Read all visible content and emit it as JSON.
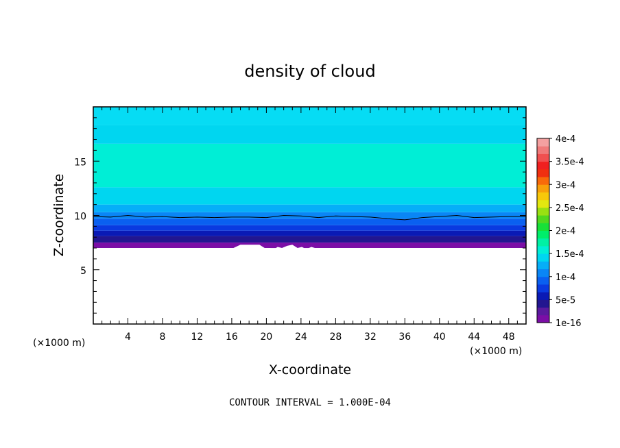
{
  "chart_data": {
    "type": "heatmap",
    "title": "density of cloud",
    "xlabel": "X-coordinate",
    "ylabel": "Z-coordinate",
    "x_unit": "(×1000 m)",
    "z_unit": "(×1000 m)",
    "xlim": [
      0,
      50
    ],
    "ylim": [
      0,
      20
    ],
    "x_ticks": [
      "4",
      "8",
      "12",
      "16",
      "20",
      "24",
      "28",
      "32",
      "36",
      "40",
      "44",
      "48"
    ],
    "y_ticks": [
      "5",
      "10",
      "15"
    ],
    "x_tick_values": [
      4,
      8,
      12,
      16,
      20,
      24,
      28,
      32,
      36,
      40,
      44,
      48
    ],
    "y_tick_values": [
      5,
      10,
      15
    ],
    "contour_interval_text": "CONTOUR INTERVAL = 1.000E-04",
    "colorbar": {
      "labels": [
        "4e-4",
        "3.5e-4",
        "3e-4",
        "2.5e-4",
        "2e-4",
        "1.5e-4",
        "1e-4",
        "5e-5",
        "1e-16"
      ],
      "label_values": [
        0.0004,
        0.00035,
        0.0003,
        0.00025,
        0.0002,
        0.00015,
        0.0001,
        5e-05,
        0
      ],
      "min": 0,
      "max": 0.0004,
      "colors": [
        "#7b0ea6",
        "#5a1a9e",
        "#221690",
        "#0a1ab5",
        "#0a3ae0",
        "#0a60f0",
        "#0a86f5",
        "#06aef8",
        "#00d6f0",
        "#00eed6",
        "#00f0a4",
        "#00ee6a",
        "#18e038",
        "#52d81e",
        "#9ae012",
        "#e2e810",
        "#f8c80a",
        "#f8a00a",
        "#f86a0a",
        "#f03010",
        "#f02020",
        "#f05050",
        "#f07a7a",
        "#f4a0a0"
      ]
    },
    "bands": [
      {
        "z_from": 7.0,
        "z_to": 7.5,
        "color": "#7b0ea6"
      },
      {
        "z_from": 7.5,
        "z_to": 8.1,
        "color": "#221690"
      },
      {
        "z_from": 8.1,
        "z_to": 8.6,
        "color": "#0a1ab5"
      },
      {
        "z_from": 8.6,
        "z_to": 9.1,
        "color": "#0a3ae0"
      },
      {
        "z_from": 9.1,
        "z_to": 9.7,
        "color": "#0a60f0"
      },
      {
        "z_from": 9.7,
        "z_to": 10.3,
        "color": "#0a86f5"
      },
      {
        "z_from": 10.3,
        "z_to": 11.0,
        "color": "#06aef8"
      },
      {
        "z_from": 11.0,
        "z_to": 12.6,
        "color": "#00d6f0"
      },
      {
        "z_from": 12.6,
        "z_to": 16.6,
        "color": "#00eed6"
      },
      {
        "z_from": 16.6,
        "z_to": 18.3,
        "color": "#00d6f0"
      },
      {
        "z_from": 18.3,
        "z_to": 20.0,
        "color": "#06dcf4"
      }
    ],
    "contour_line": {
      "x": [
        0,
        2,
        4,
        6,
        8,
        10,
        12,
        14,
        16,
        18,
        20,
        22,
        24,
        26,
        28,
        30,
        32,
        34,
        36,
        38,
        40,
        42,
        44,
        46,
        48,
        50
      ],
      "z": [
        9.9,
        9.85,
        10.0,
        9.85,
        9.9,
        9.8,
        9.85,
        9.8,
        9.85,
        9.85,
        9.8,
        10.0,
        9.95,
        9.8,
        9.95,
        9.9,
        9.85,
        9.7,
        9.6,
        9.8,
        9.9,
        10.0,
        9.8,
        9.85,
        9.9,
        9.9
      ]
    },
    "lower_edge": {
      "x": [
        0,
        12.8,
        13.5,
        16.2,
        17.0,
        19.2,
        19.8,
        20.4,
        20.9,
        21.3,
        21.8,
        22.4,
        23.0,
        23.6,
        24.1,
        24.6,
        25.2,
        25.6,
        26.2,
        31.6,
        32.2,
        50
      ],
      "z": [
        7.0,
        7.0,
        7.0,
        7.0,
        7.3,
        7.3,
        7.0,
        7.0,
        6.9,
        7.1,
        7.0,
        7.2,
        7.3,
        7.0,
        7.1,
        6.9,
        7.1,
        7.0,
        7.0,
        7.0,
        7.0,
        7.0
      ]
    }
  }
}
